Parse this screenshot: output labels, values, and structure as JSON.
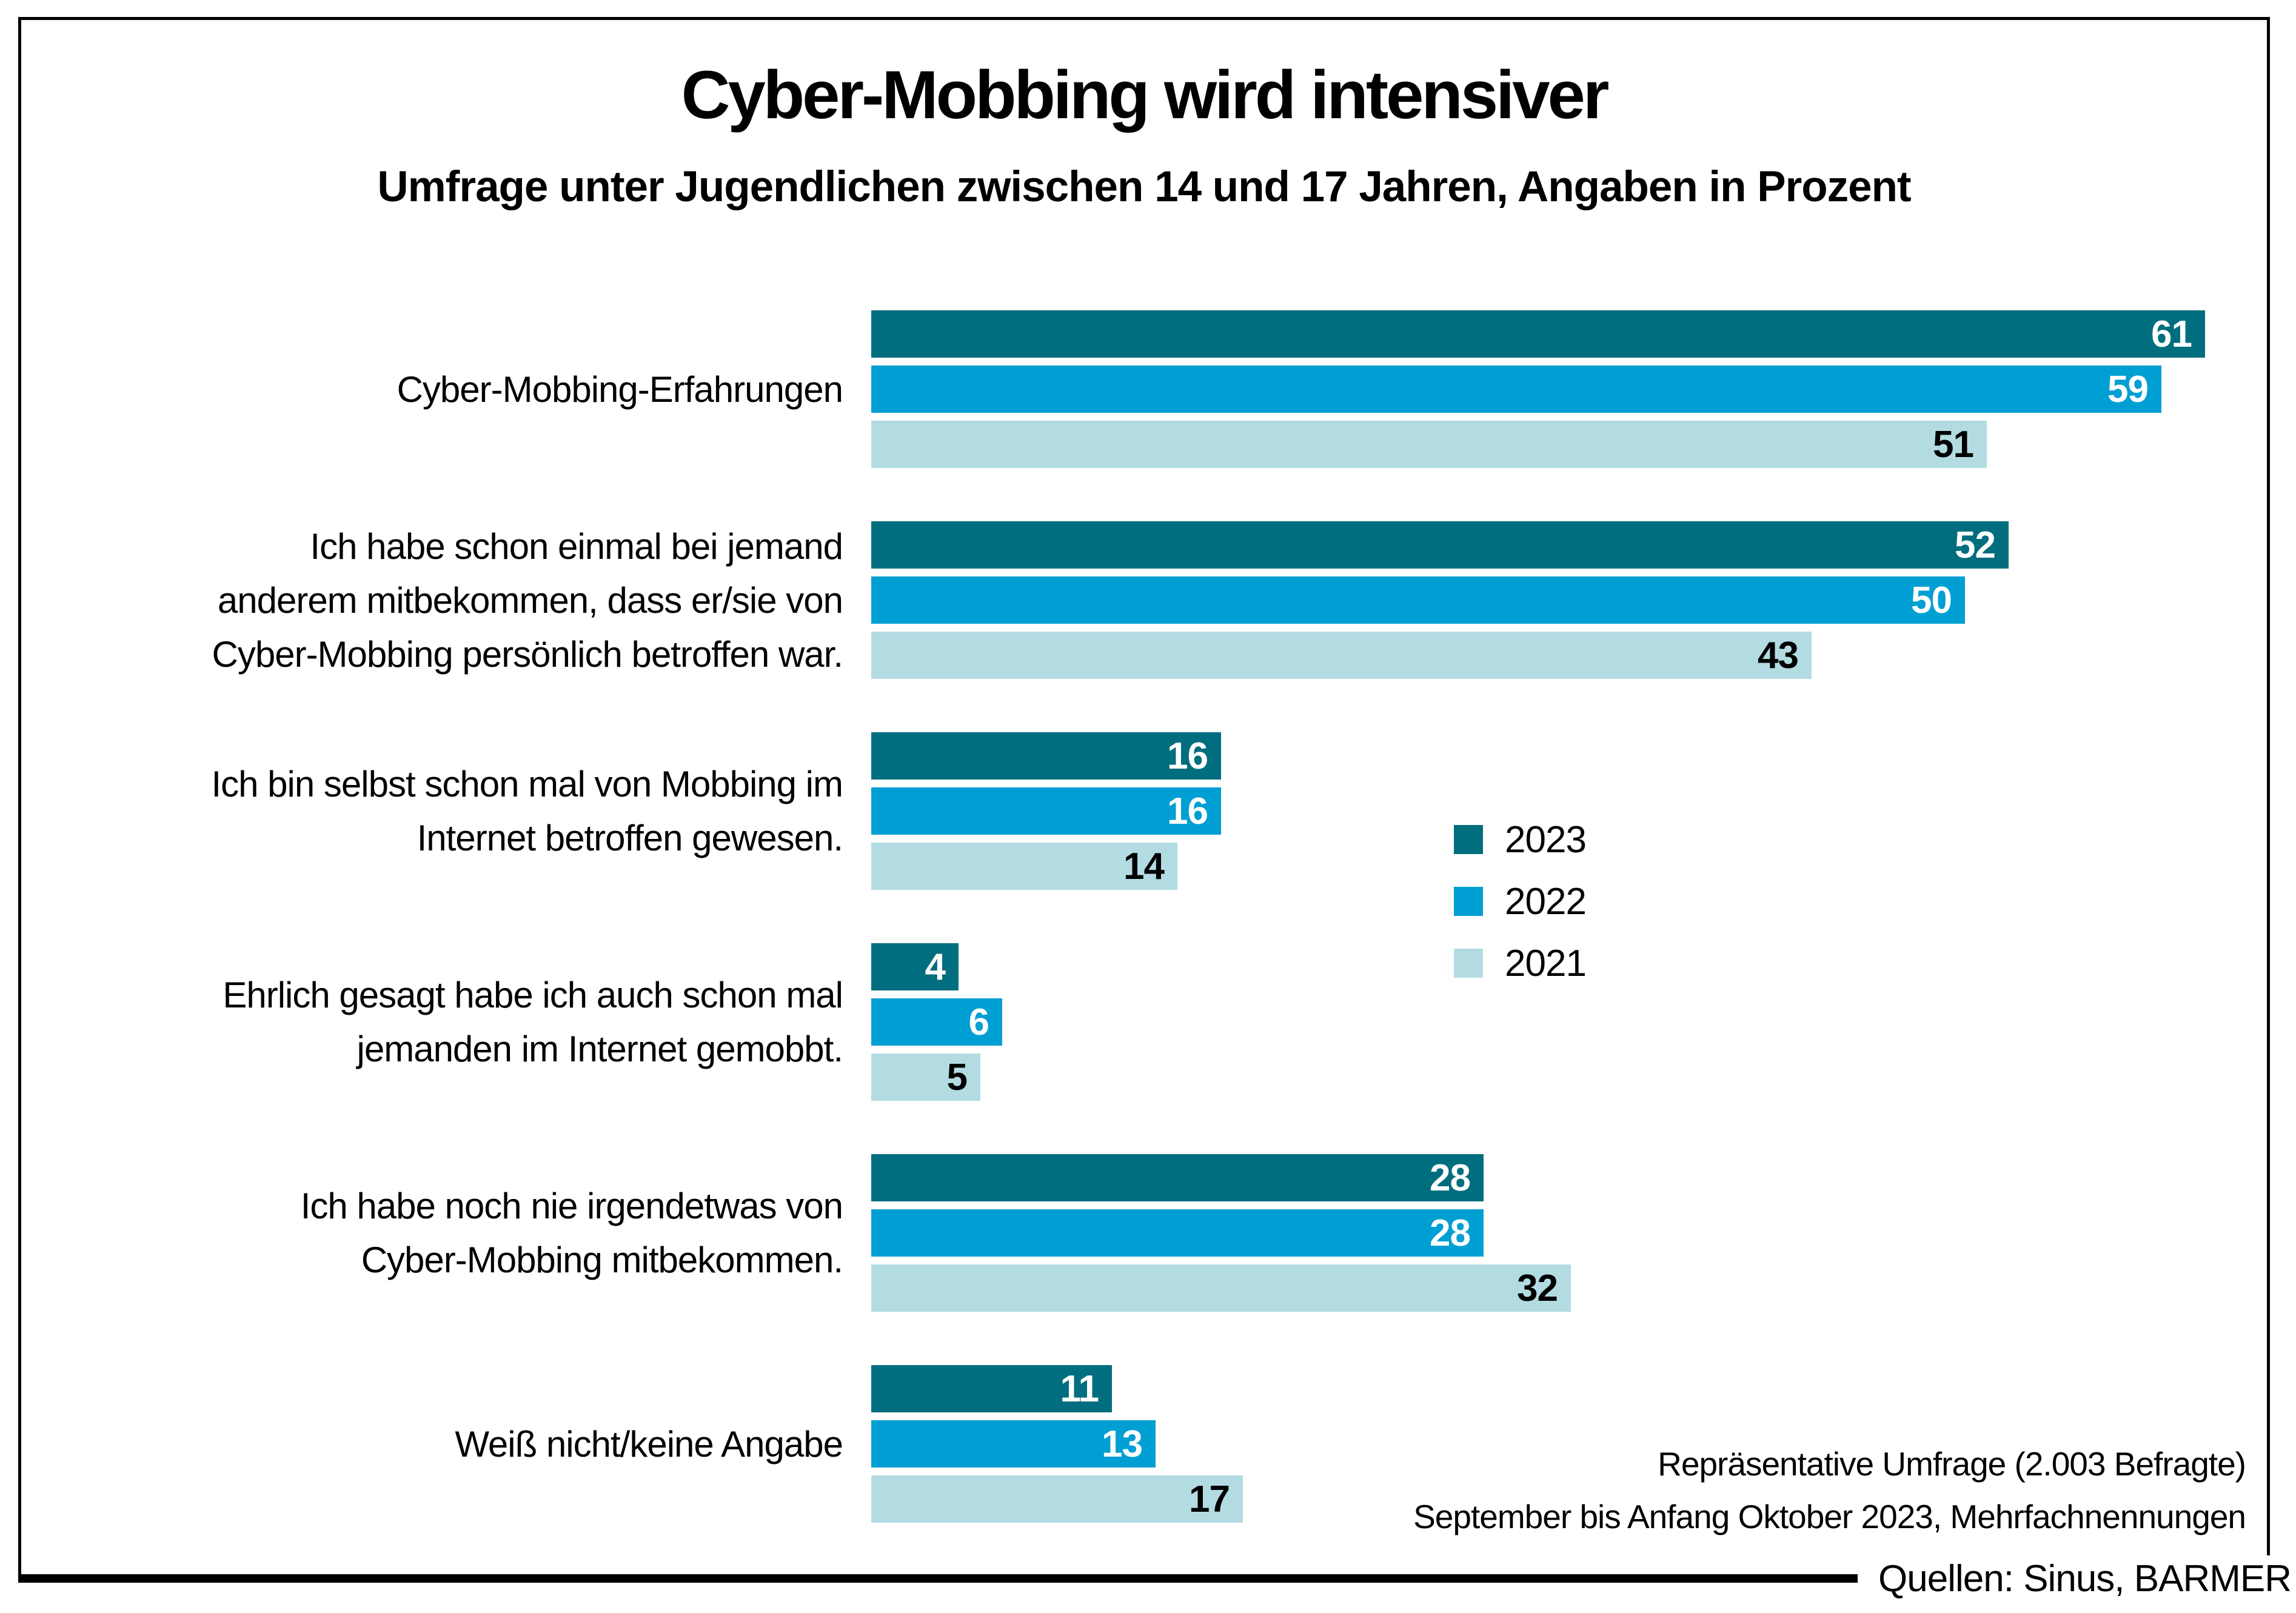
{
  "title": "Cyber-Mobbing wird intensiver",
  "subtitle": "Umfrage unter Jugendlichen zwischen 14 und 17 Jahren, Angaben in Prozent",
  "colors": {
    "year_2023": "#006e7e",
    "year_2022": "#009fd3",
    "year_2021": "#b2dce2",
    "frame": "#000000",
    "value_on_dark": "#ffffff",
    "value_on_light": "#000000"
  },
  "chart_data": {
    "type": "bar",
    "orientation": "horizontal",
    "title": "Cyber-Mobbing wird intensiver",
    "subtitle": "Umfrage unter Jugendlichen zwischen 14 und 17 Jahren, Angaben in Prozent",
    "unit": "Prozent",
    "xlim": [
      0,
      64
    ],
    "grid": false,
    "legend_position": "center-right",
    "categories": [
      "Cyber-Mobbing-Erfahrungen",
      "Ich habe schon einmal bei jemand anderem mitbekommen, dass er/sie von Cyber-Mobbing persönlich betroffen war.",
      "Ich bin selbst schon mal von Mobbing im Internet betroffen gewesen.",
      "Ehrlich gesagt habe ich auch schon mal jemanden im Internet gemobbt.",
      "Ich habe noch nie irgendetwas von Cyber-Mobbing mitbekommen.",
      "Weiß nicht/keine Angabe"
    ],
    "category_lines": [
      [
        "Cyber-Mobbing-Erfahrungen"
      ],
      [
        "Ich habe schon einmal bei jemand",
        "anderem mitbekommen, dass er/sie von",
        "Cyber-Mobbing persönlich betroffen war."
      ],
      [
        "Ich bin selbst schon mal von Mobbing im",
        "Internet betroffen gewesen."
      ],
      [
        "Ehrlich gesagt habe ich auch schon mal",
        "jemanden im Internet gemobbt."
      ],
      [
        "Ich habe noch nie irgendetwas von",
        "Cyber-Mobbing mitbekommen."
      ],
      [
        "Weiß nicht/keine Angabe"
      ]
    ],
    "series": [
      {
        "name": "2023",
        "color": "#006e7e",
        "value_color": "#ffffff",
        "values": [
          61,
          52,
          16,
          4,
          28,
          11
        ]
      },
      {
        "name": "2022",
        "color": "#009fd3",
        "value_color": "#ffffff",
        "values": [
          59,
          50,
          16,
          6,
          28,
          13
        ]
      },
      {
        "name": "2021",
        "color": "#b2dce2",
        "value_color": "#000000",
        "values": [
          51,
          43,
          14,
          5,
          32,
          17
        ]
      }
    ]
  },
  "legend": {
    "items": [
      {
        "label": "2023",
        "color": "#006e7e"
      },
      {
        "label": "2022",
        "color": "#009fd3"
      },
      {
        "label": "2021",
        "color": "#b2dce2"
      }
    ]
  },
  "footnote": {
    "line1": "Repräsentative Umfrage (2.003 Befragte)",
    "line2": "September bis Anfang Oktober 2023, Mehrfachnennungen"
  },
  "source": "Quellen: Sinus, BARMER"
}
